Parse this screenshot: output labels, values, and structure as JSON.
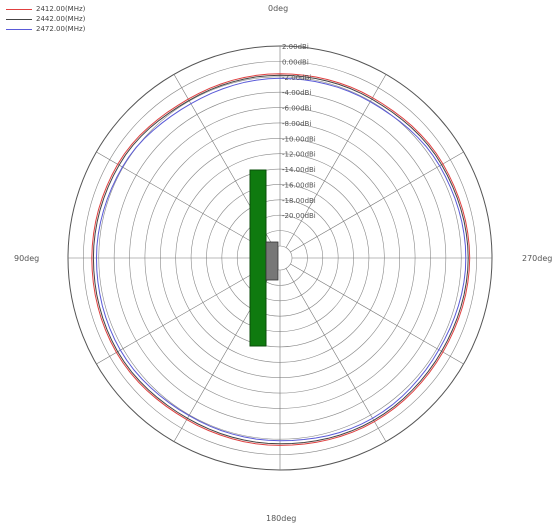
{
  "chart_data": {
    "type": "polar-line",
    "title": "",
    "angle_labels": [
      "0deg",
      "90deg",
      "180deg",
      "270deg"
    ],
    "radial_tick_labels": [
      "2.00dBi",
      "0.00dBi",
      "-2.00dBi",
      "-4.00dBi",
      "-6.00dBi",
      "-8.00dBi",
      "-10.00dBi",
      "-12.00dBi",
      "-14.00dBi",
      "-16.00dBi",
      "-18.00dBi",
      "-20.00dBi"
    ],
    "r_range": [
      -24,
      2
    ],
    "r_unit": "dBi",
    "grid": true,
    "spokes_deg": 30,
    "legend_position": "top-left",
    "series": [
      {
        "name": "2412.00(MHz)",
        "color": "#e04040",
        "angles": [
          0,
          30,
          60,
          90,
          120,
          150,
          180,
          210,
          240,
          270,
          300,
          330,
          360
        ],
        "values": [
          -1.6,
          -1.7,
          -1.2,
          -1.1,
          -1.0,
          -1.3,
          -1.2,
          -1.0,
          -1.1,
          -0.9,
          -1.1,
          -1.5,
          -1.6
        ]
      },
      {
        "name": "2442.00(MHz)",
        "color": "#444444",
        "angles": [
          0,
          30,
          60,
          90,
          120,
          150,
          180,
          210,
          240,
          270,
          300,
          330,
          360
        ],
        "values": [
          -1.8,
          -1.9,
          -1.4,
          -1.3,
          -1.2,
          -1.5,
          -1.4,
          -1.2,
          -1.3,
          -1.1,
          -1.3,
          -1.7,
          -1.8
        ]
      },
      {
        "name": "2472.00(MHz)",
        "color": "#5a5ad8",
        "angles": [
          0,
          30,
          60,
          90,
          120,
          150,
          180,
          210,
          240,
          270,
          300,
          330,
          360
        ],
        "values": [
          -2.2,
          -2.4,
          -1.9,
          -1.7,
          -1.6,
          -1.9,
          -1.8,
          -1.5,
          -1.7,
          -1.4,
          -1.6,
          -2.1,
          -2.2
        ]
      }
    ]
  },
  "graphic": {
    "board_color": "#0f7a0f",
    "chip_color": "#777777"
  }
}
